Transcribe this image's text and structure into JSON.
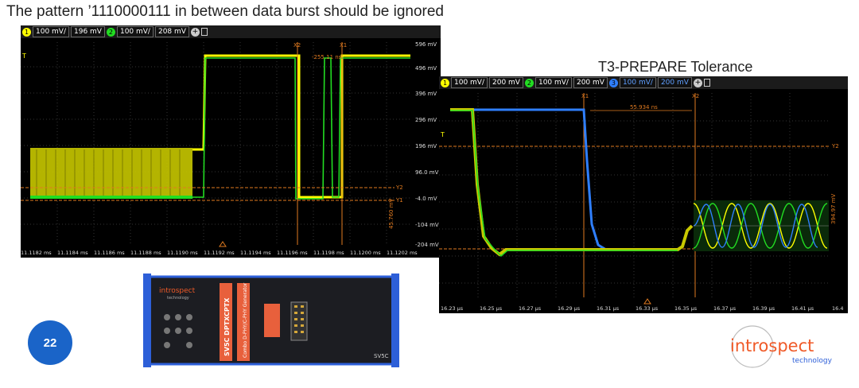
{
  "slide": {
    "title": "The pattern ’1110000111 in between data burst should be ignored",
    "page_number": "22",
    "right_title": "T3-PREPARE Tolerance"
  },
  "colors": {
    "ch1": "#ffff00",
    "ch2": "#22dd22",
    "ch3": "#2f7fff",
    "cursor": "#e07a20",
    "badge": "#1a64c8",
    "logo_orange": "#f05a28"
  },
  "scope_left": {
    "toolbar": {
      "ch1_icon": "1",
      "ch1_scale": "100 mV/",
      "ch1_offset": "196 mV",
      "ch2_icon": "2",
      "ch2_scale": "100 mV/",
      "ch2_offset": "208 mV"
    },
    "trigger_marker": "T",
    "y_ticks": [
      "596 mV",
      "496 mV",
      "396 mV",
      "296 mV",
      "196 mV",
      "96.0 mV",
      "-4.0 mV",
      "-104 mV",
      "-204 mV"
    ],
    "x_ticks": [
      "11.1182 ms",
      "11.1184 ms",
      "11.1186 ms",
      "11.1188 ms",
      "11.1190 ms",
      "11.1192 ms",
      "11.1194 ms",
      "11.1196 ms",
      "11.1198 ms",
      "11.1200 ms",
      "11.1202 ms"
    ],
    "cursor_x1": "X1",
    "cursor_x2": "X2",
    "cursor_delta_x": "-255.11 ns",
    "cursor_y2": "Y2",
    "cursor_y1": "Y1",
    "cursor_delta_y": "45.760 mV"
  },
  "scope_right": {
    "toolbar": {
      "ch1_icon": "1",
      "ch1_scale": "100 mV/",
      "ch1_offset": "200 mV",
      "ch2_icon": "2",
      "ch2_scale": "100 mV/",
      "ch2_offset": "200 mV",
      "ch3_icon": "3",
      "ch3_scale": "100 mV/",
      "ch3_offset": "200 mV"
    },
    "trigger_marker": "T",
    "x_ticks": [
      "16.23 µs",
      "16.25 µs",
      "16.27 µs",
      "16.29 µs",
      "16.31 µs",
      "16.33 µs",
      "16.35 µs",
      "16.37 µs",
      "16.39 µs",
      "16.41 µs",
      "16.4"
    ],
    "cursor_x1": "X1",
    "cursor_x2": "X2",
    "cursor_delta_x": "55.934 ns",
    "cursor_y2": "Y2",
    "cursor_delta_y": "394.97 mV"
  },
  "device": {
    "brand": "introspect",
    "brand_sub": "technology",
    "model_label": "SV5C DPTXCPTX",
    "product_label": "Combo D-PHY/C-PHY Generator",
    "model_badge": "SV5C"
  },
  "logo": {
    "name": "introspect",
    "sub": "technology"
  }
}
